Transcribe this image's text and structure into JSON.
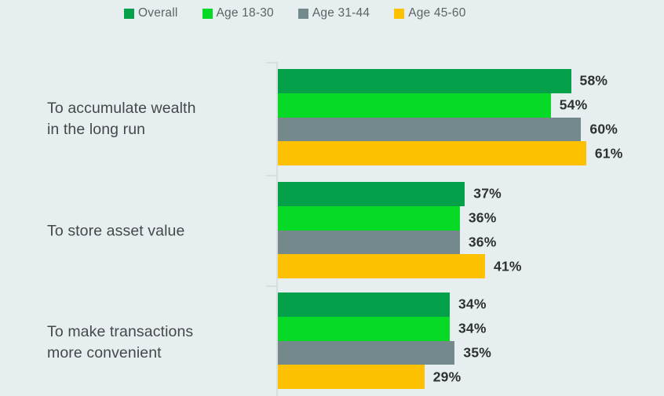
{
  "colors": {
    "background": "#e7eef0",
    "axis": "#d8dedf",
    "category_label_text": "#44484b",
    "value_label_text": "#2e3133",
    "legend_text": "#5c6365"
  },
  "chart_data": {
    "type": "bar",
    "orientation": "horizontal",
    "title": "",
    "value_unit": "%",
    "grid": false,
    "legend_position": "top",
    "xlim": [
      0,
      76
    ],
    "categories": [
      "To accumulate wealth in the long run",
      "To store asset value",
      "To make transactions more convenient"
    ],
    "category_lines": [
      [
        "To accumulate wealth",
        "in the long run"
      ],
      [
        "To store asset value"
      ],
      [
        "To make transactions",
        "more convenient"
      ]
    ],
    "series": [
      {
        "name": "Overall",
        "color": "#04a04a",
        "values": [
          58,
          37,
          34
        ]
      },
      {
        "name": "Age 18-30",
        "color": "#06d926",
        "values": [
          54,
          36,
          34
        ]
      },
      {
        "name": "Age 31-44",
        "color": "#74898c",
        "values": [
          60,
          36,
          35
        ]
      },
      {
        "name": "Age 45-60",
        "color": "#fdc102",
        "values": [
          61,
          41,
          29
        ]
      }
    ]
  }
}
